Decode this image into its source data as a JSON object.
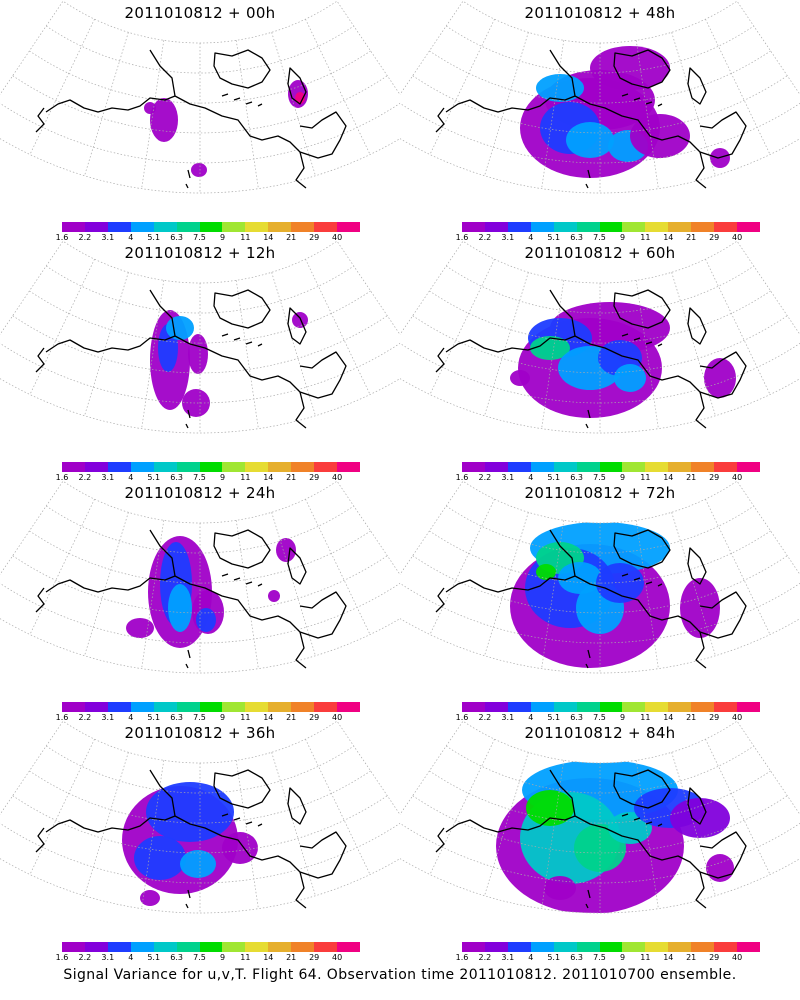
{
  "figure": {
    "caption": "Signal Variance for u,v,T. Flight 64. Observation time 2011010812. 2011010700 ensemble."
  },
  "colorbar": {
    "labels": [
      "1.6",
      "2.2",
      "3.1",
      "4",
      "5.1",
      "6.3",
      "7.5",
      "9",
      "11",
      "14",
      "21",
      "29",
      "40"
    ],
    "colors": [
      "#a000c8",
      "#8200dc",
      "#1e3cff",
      "#00a0ff",
      "#00c8c8",
      "#00d28c",
      "#00dc00",
      "#a0e632",
      "#e6dc32",
      "#e6af2d",
      "#f08228",
      "#fa3c3c",
      "#f00082"
    ]
  },
  "panels": [
    {
      "title": "2011010812 + 00h",
      "lead": "00h"
    },
    {
      "title": "2011010812 + 48h",
      "lead": "48h"
    },
    {
      "title": "2011010812 + 12h",
      "lead": "12h"
    },
    {
      "title": "2011010812 + 60h",
      "lead": "60h"
    },
    {
      "title": "2011010812 + 24h",
      "lead": "24h"
    },
    {
      "title": "2011010812 + 72h",
      "lead": "72h"
    },
    {
      "title": "2011010812 + 36h",
      "lead": "36h"
    },
    {
      "title": "2011010812 + 84h",
      "lead": "84h"
    }
  ]
}
